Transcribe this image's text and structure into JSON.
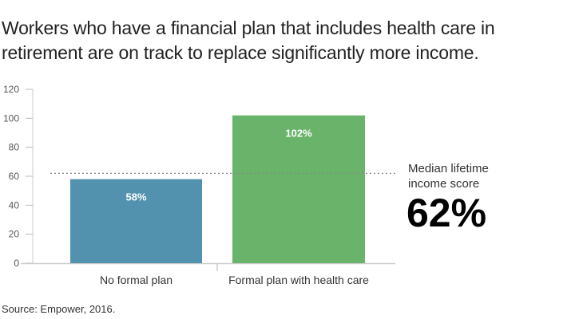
{
  "title": "Workers who have a financial plan that includes health care in retirement are on track to replace significantly more income.",
  "source": "Source: Empower, 2016.",
  "annotation": {
    "label_line1": "Median lifetime",
    "label_line2": "income score",
    "value": "62%"
  },
  "chart_data": {
    "type": "bar",
    "categories": [
      "No formal plan",
      "Formal plan with health care"
    ],
    "values": [
      58,
      102
    ],
    "data_labels": [
      "58%",
      "102%"
    ],
    "colors": [
      "#5392ae",
      "#69b36b"
    ],
    "reference_line": {
      "value": 62,
      "style": "dotted"
    },
    "yticks": [
      0,
      20,
      40,
      60,
      80,
      100,
      120
    ],
    "ylim": [
      0,
      120
    ],
    "xlabel": "",
    "ylabel": "",
    "grid": false
  }
}
